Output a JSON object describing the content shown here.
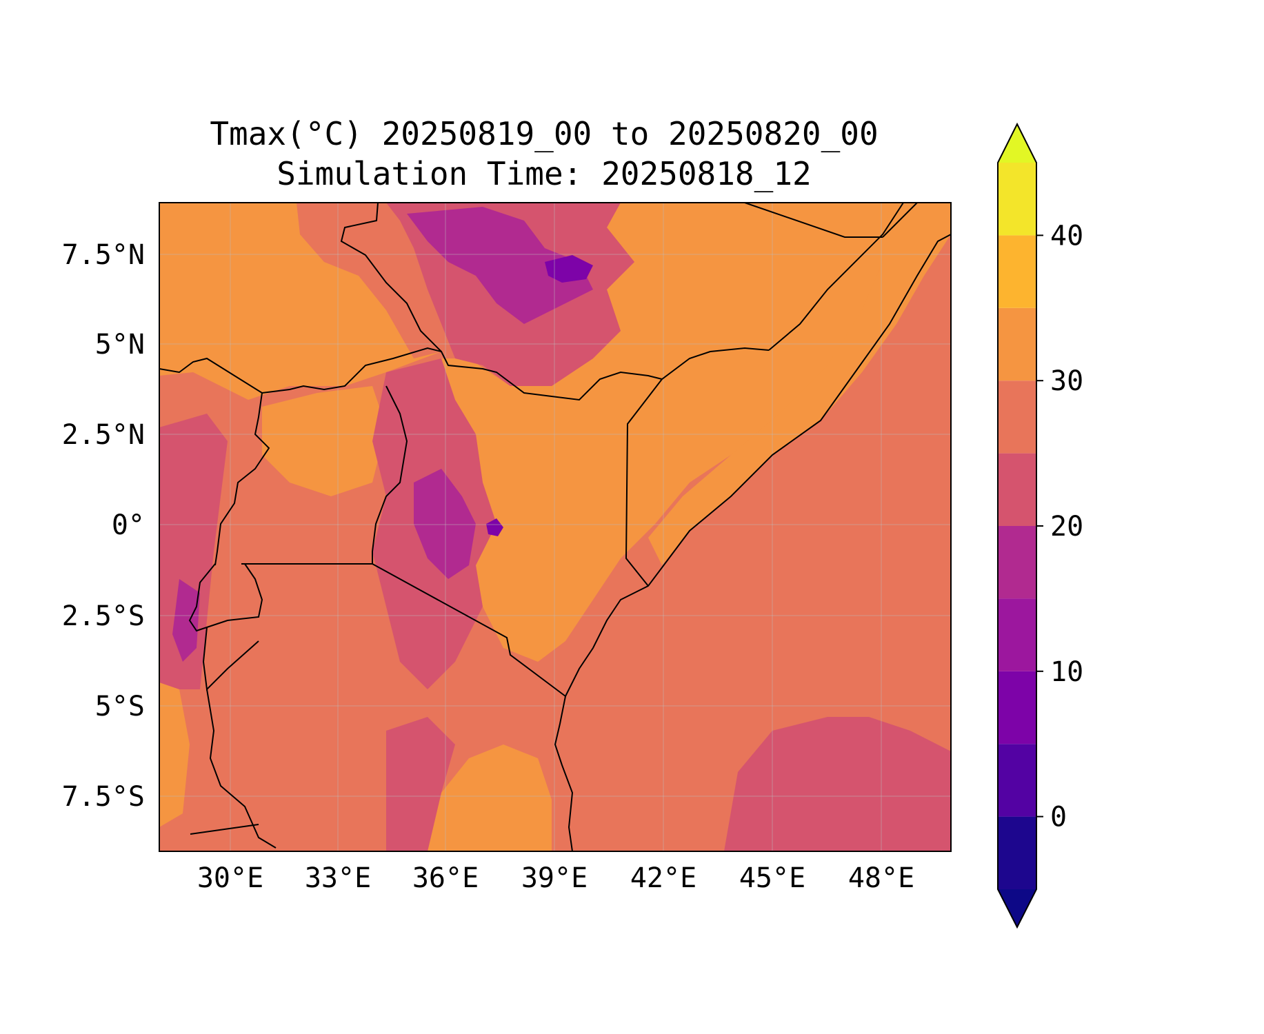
{
  "title_line1": "Tmax(°C) 20250819_00 to 20250820_00",
  "title_line2": "Simulation Time: 20250818_12",
  "x_ticks": [
    "30°E",
    "33°E",
    "36°E",
    "39°E",
    "42°E",
    "45°E",
    "48°E"
  ],
  "y_ticks": [
    "7.5°N",
    "5°N",
    "2.5°N",
    "0°",
    "2.5°S",
    "5°S",
    "7.5°S"
  ],
  "colorbar": {
    "ticks": [
      "0",
      "10",
      "20",
      "30",
      "40"
    ],
    "levels": [
      -5,
      0,
      5,
      10,
      15,
      20,
      25,
      30,
      35,
      40,
      45
    ],
    "colors": [
      "#0d0887",
      "#1d068e",
      "#5302a3",
      "#7d03a8",
      "#9c179e",
      "#b12a90",
      "#d5546e",
      "#e8755a",
      "#f59541",
      "#fdb42f",
      "#f3e52a",
      "#e2f725"
    ],
    "extend": "both"
  },
  "map": {
    "lon_range": [
      28,
      50
    ],
    "lat_range": [
      -9,
      9
    ],
    "projection": "PlateCarree",
    "land_colors": {
      "lowland_hot": "#f59541",
      "warm": "#e8755a",
      "mild": "#d5546e",
      "cool": "#b12a90",
      "cold": "#9c179e",
      "coldest": "#7d03a8"
    },
    "ocean_color": "#e8755a",
    "border_color": "#000000",
    "grid": true
  }
}
